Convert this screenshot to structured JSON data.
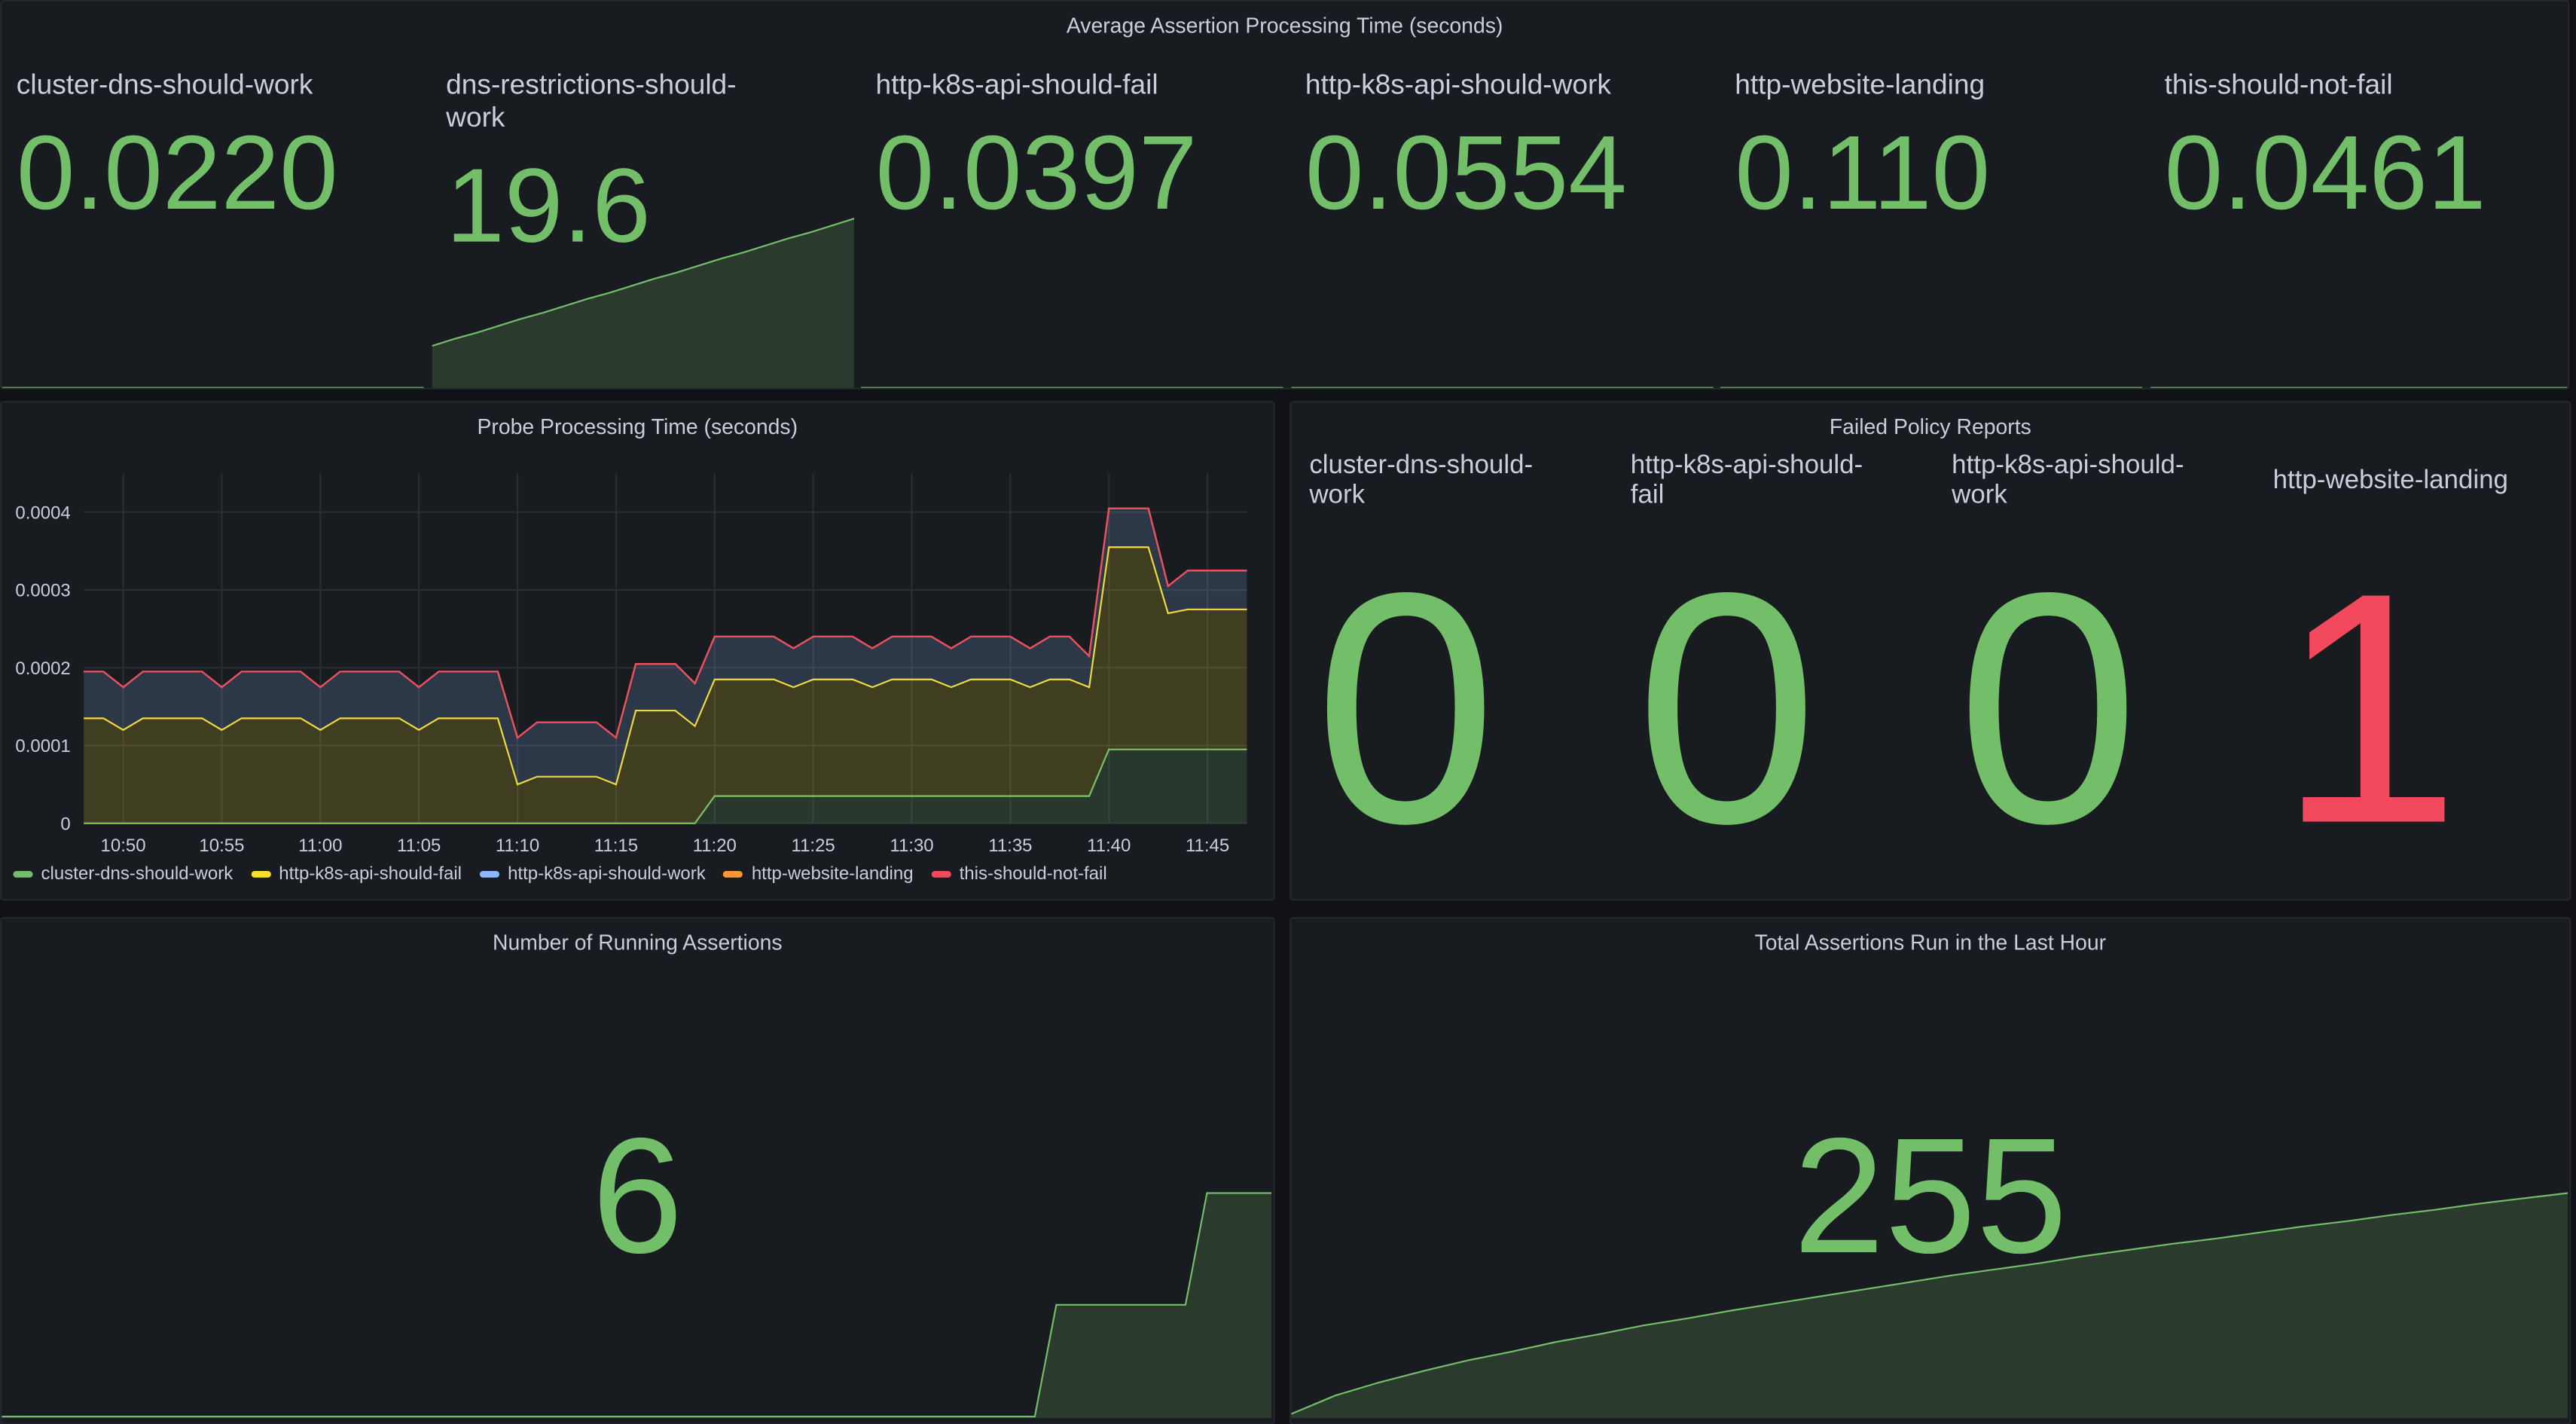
{
  "stat_row": {
    "title": "Average Assertion Processing Time (seconds)",
    "color": "#73bf69",
    "stats": [
      {
        "label": "cluster-dns-should-work",
        "value": "0.0220"
      },
      {
        "label": "dns-restrictions-should-work",
        "value": "19.6",
        "sparkline": [
          5,
          5.8,
          6.5,
          7.3,
          8.1,
          8.8,
          9.6,
          10.4,
          11.1,
          11.9,
          12.7,
          13.4,
          14.2,
          15.0,
          15.7,
          16.5,
          17.3,
          18.0,
          18.8,
          19.6
        ]
      },
      {
        "label": "http-k8s-api-should-fail",
        "value": "0.0397"
      },
      {
        "label": "http-k8s-api-should-work",
        "value": "0.0554"
      },
      {
        "label": "http-website-landing",
        "value": "0.110"
      },
      {
        "label": "this-should-not-fail",
        "value": "0.0461"
      }
    ]
  },
  "probe_chart": {
    "type": "line",
    "title": "Probe Processing Time (seconds)",
    "stacked": true,
    "grid": true,
    "x": [
      "10:48",
      "10:49",
      "10:50",
      "10:51",
      "10:52",
      "10:53",
      "10:54",
      "10:55",
      "10:56",
      "10:57",
      "10:58",
      "10:59",
      "11:00",
      "11:01",
      "11:02",
      "11:03",
      "11:04",
      "11:05",
      "11:06",
      "11:07",
      "11:08",
      "11:09",
      "11:10",
      "11:11",
      "11:12",
      "11:13",
      "11:14",
      "11:15",
      "11:16",
      "11:17",
      "11:18",
      "11:19",
      "11:20",
      "11:21",
      "11:22",
      "11:23",
      "11:24",
      "11:25",
      "11:26",
      "11:27",
      "11:28",
      "11:29",
      "11:30",
      "11:31",
      "11:32",
      "11:33",
      "11:34",
      "11:35",
      "11:36",
      "11:37",
      "11:38",
      "11:39",
      "11:40",
      "11:41",
      "11:42",
      "11:43",
      "11:44",
      "11:45",
      "11:46",
      "11:47"
    ],
    "xlim": [
      "10:48",
      "11:47"
    ],
    "xticks": [
      "10:50",
      "10:55",
      "11:00",
      "11:05",
      "11:10",
      "11:15",
      "11:20",
      "11:25",
      "11:30",
      "11:35",
      "11:40",
      "11:45"
    ],
    "ylim": [
      0,
      0.00045
    ],
    "yticks": [
      0,
      0.0001,
      0.0002,
      0.0003,
      0.0004
    ],
    "series": [
      {
        "name": "cluster-dns-should-work",
        "color": "#73bf69",
        "values": [
          0,
          0,
          0,
          0,
          0,
          0,
          0,
          0,
          0,
          0,
          0,
          0,
          0,
          0,
          0,
          0,
          0,
          0,
          0,
          0,
          0,
          0,
          0,
          0,
          0,
          0,
          0,
          0,
          0,
          0,
          0,
          0,
          3.5e-05,
          3.5e-05,
          3.5e-05,
          3.5e-05,
          3.5e-05,
          3.5e-05,
          3.5e-05,
          3.5e-05,
          3.5e-05,
          3.5e-05,
          3.5e-05,
          3.5e-05,
          3.5e-05,
          3.5e-05,
          3.5e-05,
          3.5e-05,
          3.5e-05,
          3.5e-05,
          3.5e-05,
          3.5e-05,
          9.5e-05,
          9.5e-05,
          9.5e-05,
          9.5e-05,
          9.5e-05,
          9.5e-05,
          9.5e-05,
          9.5e-05
        ]
      },
      {
        "name": "http-k8s-api-should-fail",
        "color": "#fade2a",
        "values": [
          0.000135,
          0.000135,
          0.00012,
          0.000135,
          0.000135,
          0.000135,
          0.000135,
          0.00012,
          0.000135,
          0.000135,
          0.000135,
          0.000135,
          0.00012,
          0.000135,
          0.000135,
          0.000135,
          0.000135,
          0.00012,
          0.000135,
          0.000135,
          0.000135,
          0.000135,
          5e-05,
          6e-05,
          6e-05,
          6e-05,
          6e-05,
          5e-05,
          0.000145,
          0.000145,
          0.000145,
          0.000125,
          0.00015,
          0.00015,
          0.00015,
          0.00015,
          0.00014,
          0.00015,
          0.00015,
          0.00015,
          0.00014,
          0.00015,
          0.00015,
          0.00015,
          0.00014,
          0.00015,
          0.00015,
          0.00015,
          0.00014,
          0.00015,
          0.00015,
          0.00014,
          0.00026,
          0.00026,
          0.00026,
          0.000175,
          0.00018,
          0.00018,
          0.00018,
          0.00018
        ]
      },
      {
        "name": "http-k8s-api-should-work",
        "color": "#8ab8ff",
        "values": [
          6e-05,
          6e-05,
          5.5e-05,
          6e-05,
          6e-05,
          6e-05,
          6e-05,
          5.5e-05,
          6e-05,
          6e-05,
          6e-05,
          6e-05,
          5.5e-05,
          6e-05,
          6e-05,
          6e-05,
          6e-05,
          5.5e-05,
          6e-05,
          6e-05,
          6e-05,
          6e-05,
          6e-05,
          7e-05,
          7e-05,
          7e-05,
          7e-05,
          6e-05,
          6e-05,
          6e-05,
          6e-05,
          5.5e-05,
          5.5e-05,
          5.5e-05,
          5.5e-05,
          5.5e-05,
          5e-05,
          5.5e-05,
          5.5e-05,
          5.5e-05,
          5e-05,
          5.5e-05,
          5.5e-05,
          5.5e-05,
          5e-05,
          5.5e-05,
          5.5e-05,
          5.5e-05,
          5e-05,
          5.5e-05,
          5.5e-05,
          4e-05,
          5e-05,
          5e-05,
          5e-05,
          3.5e-05,
          5e-05,
          5e-05,
          5e-05,
          5e-05
        ]
      },
      {
        "name": "http-website-landing",
        "color": "#ff9830",
        "values": [
          0,
          0,
          0,
          0,
          0,
          0,
          0,
          0,
          0,
          0,
          0,
          0,
          0,
          0,
          0,
          0,
          0,
          0,
          0,
          0,
          0,
          0,
          0,
          0,
          0,
          0,
          0,
          0,
          0,
          0,
          0,
          0,
          0,
          0,
          0,
          0,
          0,
          0,
          0,
          0,
          0,
          0,
          0,
          0,
          0,
          0,
          0,
          0,
          0,
          0,
          0,
          0,
          0,
          0,
          0,
          0,
          0,
          0,
          0,
          0
        ]
      },
      {
        "name": "this-should-not-fail",
        "color": "#f2495c",
        "values": [
          0,
          0,
          0,
          0,
          0,
          0,
          0,
          0,
          0,
          0,
          0,
          0,
          0,
          0,
          0,
          0,
          0,
          0,
          0,
          0,
          0,
          0,
          0,
          0,
          0,
          0,
          0,
          0,
          0,
          0,
          0,
          0,
          0,
          0,
          0,
          0,
          0,
          0,
          0,
          0,
          0,
          0,
          0,
          0,
          0,
          0,
          0,
          0,
          0,
          0,
          0,
          0,
          0,
          0,
          0,
          0,
          0,
          0,
          0,
          0
        ]
      }
    ]
  },
  "failed_reports": {
    "title": "Failed Policy Reports",
    "stats": [
      {
        "label": "cluster-dns-should-work",
        "value": "0",
        "color": "#73bf69"
      },
      {
        "label": "http-k8s-api-should-fail",
        "value": "0",
        "color": "#73bf69"
      },
      {
        "label": "http-k8s-api-should-work",
        "value": "0",
        "color": "#73bf69"
      },
      {
        "label": "http-website-landing",
        "value": "1",
        "color": "#f2495c"
      }
    ]
  },
  "running_assertions": {
    "title": "Number of Running Assertions",
    "value": "6",
    "color": "#73bf69",
    "sparkline": [
      0,
      0,
      0,
      0,
      0,
      0,
      0,
      0,
      0,
      0,
      0,
      0,
      0,
      0,
      0,
      0,
      0,
      0,
      0,
      0,
      0,
      0,
      0,
      0,
      0,
      0,
      0,
      0,
      0,
      0,
      0,
      0,
      0,
      0,
      0,
      0,
      0,
      0,
      0,
      0,
      0,
      0,
      0,
      0,
      0,
      0,
      0,
      0,
      0,
      3,
      3,
      3,
      3,
      3,
      3,
      3,
      6,
      6,
      6,
      6
    ]
  },
  "total_assertions": {
    "title": "Total Assertions Run in the Last Hour",
    "value": "255",
    "color": "#73bf69",
    "sparkline": [
      3,
      24,
      39,
      52,
      64,
      74,
      85,
      94,
      104,
      112,
      121,
      129,
      137,
      145,
      153,
      161,
      168,
      175,
      183,
      190,
      197,
      203,
      210,
      217,
      223,
      230,
      236,
      243,
      249,
      255
    ]
  }
}
